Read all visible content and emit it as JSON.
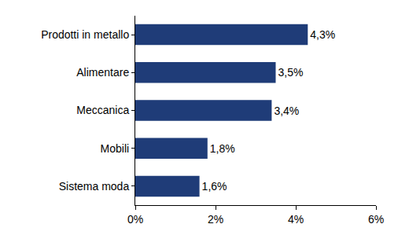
{
  "chart_data": {
    "type": "bar",
    "orientation": "horizontal",
    "categories": [
      "Prodotti in metallo",
      "Alimentare",
      "Meccanica",
      "Mobili",
      "Sistema moda"
    ],
    "values": [
      4.3,
      3.5,
      3.4,
      1.8,
      1.6
    ],
    "value_labels": [
      "4,3%",
      "3,5%",
      "3,4%",
      "1,8%",
      "1,6%"
    ],
    "data_labels": true,
    "color": "#1f3c78",
    "xlim": [
      0,
      6
    ],
    "xticks": [
      {
        "value": 0,
        "label": "0%"
      },
      {
        "value": 2,
        "label": "2%"
      },
      {
        "value": 4,
        "label": "4%"
      },
      {
        "value": 6,
        "label": "6%"
      }
    ],
    "grid": false
  }
}
